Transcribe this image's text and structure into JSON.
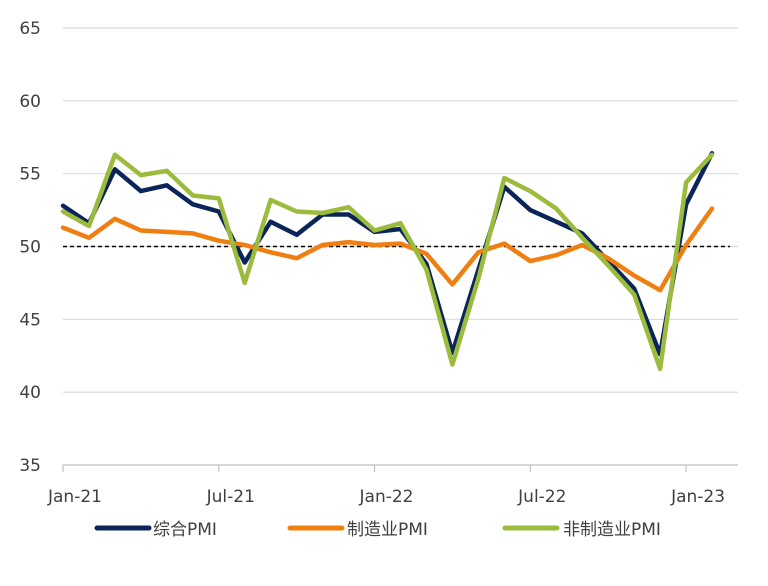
{
  "chart_data": {
    "type": "line",
    "title": "",
    "xlabel": "",
    "ylabel": "",
    "ylim": [
      35,
      65
    ],
    "yticks": [
      35,
      40,
      45,
      50,
      55,
      60,
      65
    ],
    "grid": true,
    "legend_position": "bottom",
    "reference_line": {
      "y": 50,
      "style": "dashed",
      "color": "#000000"
    },
    "x_tick_labels": [
      "Jan-21",
      "Jul-21",
      "Jan-22",
      "Jul-22",
      "Jan-23"
    ],
    "x_tick_months": [
      "2021-01",
      "2021-07",
      "2022-01",
      "2022-07",
      "2023-01"
    ],
    "x": [
      "2021-01",
      "2021-02",
      "2021-03",
      "2021-04",
      "2021-05",
      "2021-06",
      "2021-07",
      "2021-08",
      "2021-09",
      "2021-10",
      "2021-11",
      "2021-12",
      "2022-01",
      "2022-02",
      "2022-03",
      "2022-04",
      "2022-05",
      "2022-06",
      "2022-07",
      "2022-08",
      "2022-09",
      "2022-10",
      "2022-11",
      "2022-12",
      "2023-01",
      "2023-02"
    ],
    "series": [
      {
        "name": "综合PMI",
        "color": "#0B2559",
        "values": [
          52.8,
          51.6,
          55.3,
          53.8,
          54.2,
          52.9,
          52.4,
          48.9,
          51.7,
          50.8,
          52.2,
          52.2,
          51.0,
          51.2,
          48.8,
          42.7,
          48.4,
          54.1,
          52.5,
          51.7,
          50.9,
          49.0,
          47.1,
          42.6,
          52.9,
          56.4
        ]
      },
      {
        "name": "制造业PMI",
        "color": "#F07F12",
        "values": [
          51.3,
          50.6,
          51.9,
          51.1,
          51.0,
          50.9,
          50.4,
          50.1,
          49.6,
          49.2,
          50.1,
          50.3,
          50.1,
          50.2,
          49.5,
          47.4,
          49.6,
          50.2,
          49.0,
          49.4,
          50.1,
          49.2,
          48.0,
          47.0,
          50.1,
          52.6
        ]
      },
      {
        "name": "非制造业PMI",
        "color": "#9BBB3D",
        "values": [
          52.4,
          51.4,
          56.3,
          54.9,
          55.2,
          53.5,
          53.3,
          47.5,
          53.2,
          52.4,
          52.3,
          52.7,
          51.1,
          51.6,
          48.4,
          41.9,
          47.8,
          54.7,
          53.8,
          52.6,
          50.6,
          48.7,
          46.7,
          41.6,
          54.4,
          56.3
        ]
      }
    ]
  }
}
